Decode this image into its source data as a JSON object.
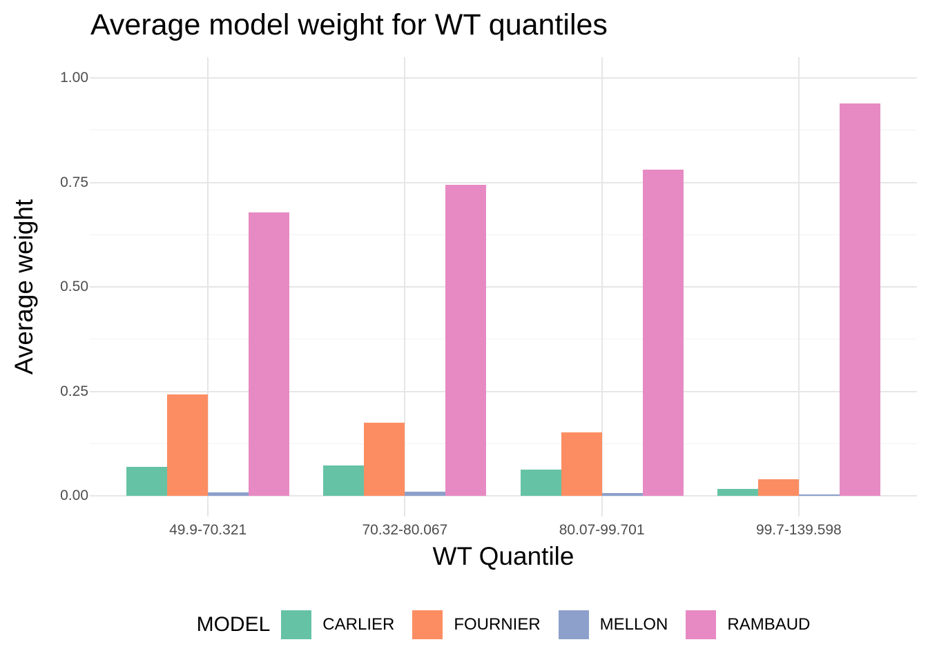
{
  "chart_data": {
    "type": "bar",
    "title": "Average model weight for WT quantiles",
    "xlabel": "WT Quantile",
    "ylabel": "Average weight",
    "legend_title": "MODEL",
    "legend_position": "bottom",
    "grid": true,
    "categories": [
      "49.9-70.321",
      "70.32-80.067",
      "80.07-99.701",
      "99.7-139.598"
    ],
    "series": [
      {
        "name": "CARLIER",
        "color": "#66C2A5",
        "values": [
          0.07,
          0.073,
          0.063,
          0.017
        ]
      },
      {
        "name": "FOURNIER",
        "color": "#FC8D62",
        "values": [
          0.242,
          0.175,
          0.151,
          0.04
        ]
      },
      {
        "name": "MELLON",
        "color": "#8DA0CB",
        "values": [
          0.009,
          0.01,
          0.007,
          0.003
        ]
      },
      {
        "name": "RAMBAUD",
        "color": "#E78AC3",
        "values": [
          0.679,
          0.744,
          0.781,
          0.939
        ]
      }
    ],
    "ylim": [
      0,
      1
    ],
    "yticks": [
      0,
      0.25,
      0.5,
      0.75,
      1
    ],
    "ytick_labels": [
      "0.00",
      "0.25",
      "0.50",
      "0.75",
      "1.00"
    ]
  }
}
